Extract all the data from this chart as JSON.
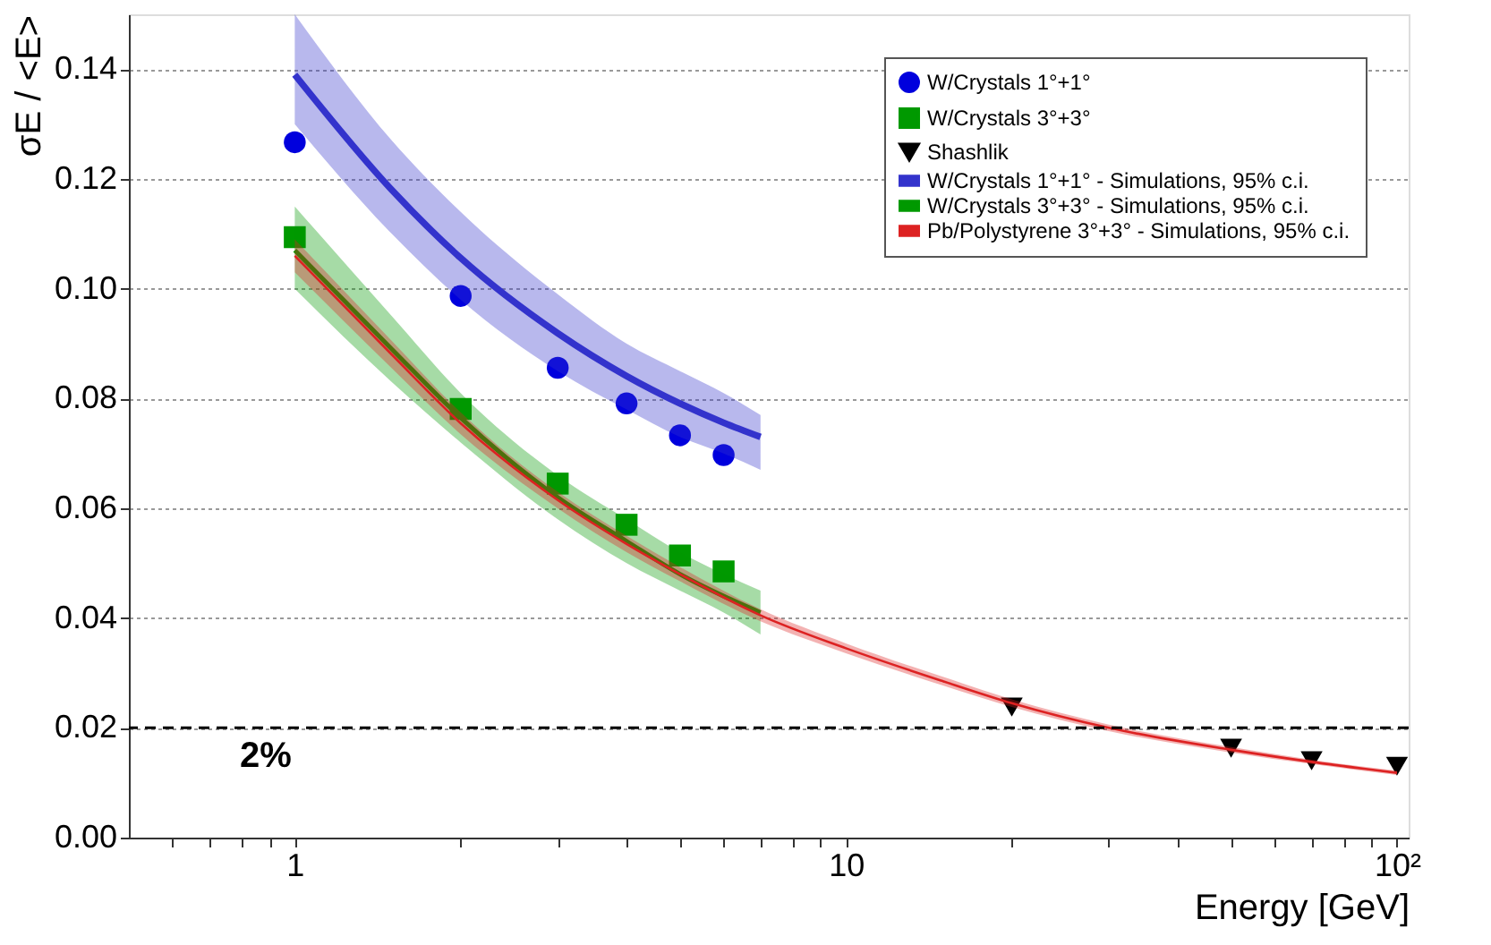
{
  "chart_data": {
    "type": "scatter",
    "xlabel": "Energy [GeV]",
    "ylabel": "σE / <E>",
    "log": "x",
    "xlim": [
      0.5,
      105
    ],
    "ylim": [
      0,
      0.15
    ],
    "xticks": [
      {
        "value": 0.6,
        "label": null
      },
      {
        "value": 0.7,
        "label": null
      },
      {
        "value": 0.8,
        "label": null
      },
      {
        "value": 0.9,
        "label": null
      },
      1,
      {
        "value": 2,
        "label": null
      },
      {
        "value": 3,
        "label": null
      },
      {
        "value": 4,
        "label": null
      },
      {
        "value": 5,
        "label": null
      },
      {
        "value": 6,
        "label": null
      },
      {
        "value": 7,
        "label": null
      },
      {
        "value": 8,
        "label": null
      },
      {
        "value": 9,
        "label": null
      },
      10,
      {
        "value": 20,
        "label": null
      },
      {
        "value": 30,
        "label": null
      },
      {
        "value": 40,
        "label": null
      },
      {
        "value": 50,
        "label": null
      },
      {
        "value": 60,
        "label": null
      },
      {
        "value": 70,
        "label": null
      },
      {
        "value": 80,
        "label": null
      },
      {
        "value": 90,
        "label": null
      },
      {
        "value": 100,
        "label": "10²"
      }
    ],
    "yticks": [
      {
        "value": 0,
        "label": "0.00"
      },
      {
        "value": 0.02,
        "label": "0.02"
      },
      {
        "value": 0.04,
        "label": "0.04"
      },
      {
        "value": 0.06,
        "label": "0.06"
      },
      {
        "value": 0.08,
        "label": "0.08"
      },
      {
        "value": 0.1,
        "label": "0.10"
      },
      {
        "value": 0.12,
        "label": "0.12"
      },
      {
        "value": 0.14,
        "label": "0.14"
      }
    ],
    "grid": "y",
    "legend": "top right",
    "ref_lines": [
      {
        "axis": "y",
        "value": 0.02,
        "label": "2%",
        "color": "#000000",
        "line_style": "dashed"
      }
    ],
    "series": [
      {
        "name": "W/Crystals 1°+1°",
        "marker": "circle",
        "color": "#0000dd",
        "x": [
          1,
          2,
          3,
          4,
          5,
          6
        ],
        "values": [
          0.1267,
          0.0987,
          0.0856,
          0.0791,
          0.0733,
          0.0697
        ]
      },
      {
        "name": "W/Crystals 3°+3°",
        "marker": "square",
        "color": "#009900",
        "x": [
          1,
          2,
          3,
          4,
          5,
          6
        ],
        "values": [
          0.1094,
          0.0781,
          0.0645,
          0.057,
          0.0514,
          0.0485
        ]
      },
      {
        "name": "Shashlik",
        "marker": "triangle",
        "color": "#000000",
        "x": [
          20,
          50,
          70,
          100
        ],
        "values": [
          0.0238,
          0.0163,
          0.014,
          0.013
        ]
      },
      {
        "name": "W/Crystals 1°+1° - Simulations, 95% c.i.",
        "type": "line",
        "marker": "none",
        "color": "#3333cc",
        "x": [
          1,
          1.5,
          2,
          3,
          4,
          5,
          6,
          7
        ],
        "values": [
          0.139,
          0.118,
          0.1056,
          0.0919,
          0.0841,
          0.0791,
          0.0756,
          0.073
        ],
        "lower": [
          0.13,
          0.11,
          0.098,
          0.085,
          0.078,
          0.073,
          0.07,
          0.067
        ],
        "upper": [
          0.15,
          0.127,
          0.114,
          0.099,
          0.09,
          0.085,
          0.081,
          0.077
        ]
      },
      {
        "name": "W/Crystals 3°+3° - Simulations, 95% c.i.",
        "type": "line",
        "marker": "none",
        "color": "#009900",
        "x": [
          1,
          1.5,
          2,
          3,
          4,
          5,
          6,
          7
        ],
        "values": [
          0.107,
          0.089,
          0.0765,
          0.062,
          0.054,
          0.048,
          0.044,
          0.041
        ],
        "lower": [
          0.1,
          0.083,
          0.072,
          0.058,
          0.05,
          0.045,
          0.041,
          0.037
        ],
        "upper": [
          0.115,
          0.095,
          0.081,
          0.066,
          0.058,
          0.052,
          0.048,
          0.045
        ]
      },
      {
        "name": "Pb/Polystyrene 3°+3° - Simulations, 95% c.i.",
        "type": "line",
        "marker": "none",
        "color": "#dd2222",
        "x": [
          1,
          1.5,
          2,
          3,
          4,
          5,
          7,
          10,
          15,
          20,
          30,
          50,
          70,
          100
        ],
        "values": [
          0.106,
          0.088,
          0.0755,
          0.0615,
          0.0535,
          0.048,
          0.0405,
          0.0345,
          0.0285,
          0.0245,
          0.02,
          0.016,
          0.0138,
          0.0118
        ],
        "lower": [
          0.103,
          0.0855,
          0.0735,
          0.06,
          0.052,
          0.0467,
          0.0394,
          0.0336,
          0.0277,
          0.0238,
          0.0194,
          0.0155,
          0.0134,
          0.0114
        ],
        "upper": [
          0.109,
          0.0905,
          0.0775,
          0.063,
          0.055,
          0.0493,
          0.0416,
          0.0354,
          0.0293,
          0.0252,
          0.0206,
          0.0165,
          0.0142,
          0.0122
        ]
      }
    ]
  }
}
